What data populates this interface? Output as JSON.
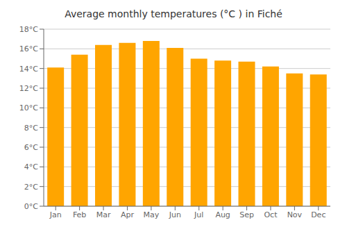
{
  "chart_data": {
    "type": "bar",
    "title": "Average monthly temperatures (°C ) in Fiché",
    "categories": [
      "Jan",
      "Feb",
      "Mar",
      "Apr",
      "May",
      "Jun",
      "Jul",
      "Aug",
      "Sep",
      "Oct",
      "Nov",
      "Dec"
    ],
    "values": [
      14.1,
      15.4,
      16.4,
      16.6,
      16.8,
      16.1,
      15.0,
      14.8,
      14.7,
      14.2,
      13.5,
      13.4
    ],
    "color": "#FFA500",
    "ylim": [
      0,
      18
    ],
    "yticks": [
      {
        "value": 0,
        "label": "0°C"
      },
      {
        "value": 2,
        "label": "2°C"
      },
      {
        "value": 4,
        "label": "4°C"
      },
      {
        "value": 6,
        "label": "6°C"
      },
      {
        "value": 8,
        "label": "8°C"
      },
      {
        "value": 10,
        "label": "10°C"
      },
      {
        "value": 12,
        "label": "12°C"
      },
      {
        "value": 14,
        "label": "14°C"
      },
      {
        "value": 16,
        "label": "16°C"
      },
      {
        "value": 18,
        "label": "18°C"
      }
    ],
    "grid": true
  }
}
